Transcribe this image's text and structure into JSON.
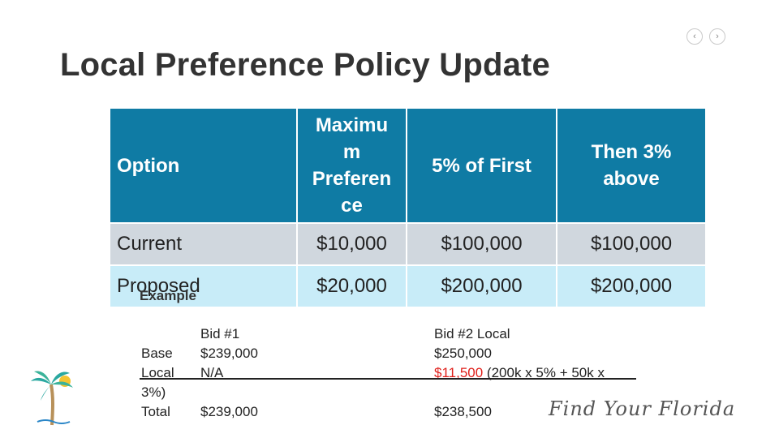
{
  "nav": {
    "prev_icon": "chevron-left-icon",
    "next_icon": "chevron-right-icon",
    "prev_glyph": "‹",
    "next_glyph": "›"
  },
  "title": "Local Preference Policy Update",
  "table": {
    "headers": [
      "Option",
      "Maximu\nm\nPreferen\nce",
      "5% of First",
      "Then 3%\nabove"
    ],
    "rows": [
      {
        "option": "Current",
        "max": "$10,000",
        "first": "$100,000",
        "above": "$100,000"
      },
      {
        "option": "Proposed",
        "max": "$20,000",
        "first": "$200,000",
        "above": "$200,000"
      }
    ]
  },
  "example": {
    "label": "Example",
    "labels_col": [
      "Base",
      "Local",
      "3%)",
      "Total"
    ],
    "bid1": {
      "title": "Bid #1",
      "base": "$239,000",
      "local": "N/A",
      "total": "$239,000"
    },
    "bid2": {
      "title": "Bid #2 Local",
      "base": "$250,000",
      "local_amount": "$11,500",
      "local_formula": " (200k x 5% + 50k x",
      "total": "$238,500"
    }
  },
  "branding": {
    "logo_text": "Find Your Florida",
    "colors": {
      "header": "#0f7ba4",
      "current_row": "#d0d7de",
      "proposed_row": "#c8ecf8",
      "highlight": "#e0201b"
    }
  }
}
